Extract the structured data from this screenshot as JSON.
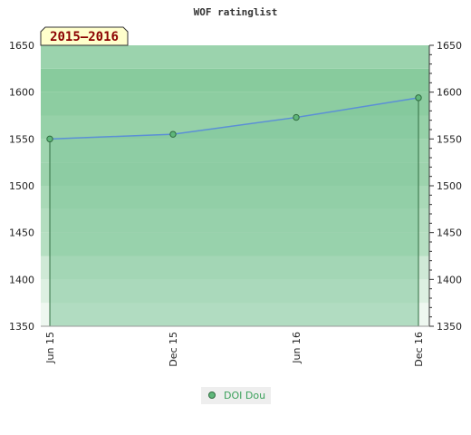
{
  "chart_data": {
    "type": "area",
    "title": "WOF ratinglist",
    "season_label": "2015–2016",
    "xlabel": "",
    "ylabel": "",
    "x_tick_labels": [
      "Jun 15",
      "Dec 15",
      "Jun 16",
      "Dec 16"
    ],
    "ylim": [
      1350,
      1650
    ],
    "y_ticks": [
      1350,
      1400,
      1450,
      1500,
      1550,
      1600,
      1650
    ],
    "series": [
      {
        "name": "DOI Dou",
        "x": [
          "Jun 15",
          "Dec 15",
          "Jun 16",
          "Dec 16"
        ],
        "values": [
          1550,
          1555,
          1573,
          1594
        ]
      }
    ],
    "legend_position": "bottom-center",
    "grid": false
  },
  "colors": {
    "line": "#5b8fd6",
    "marker_fill": "#5fb77a",
    "marker_stroke": "#2f6b3f",
    "area_fill": "#7fc79a",
    "legend_text": "#3aa05a",
    "legend_bg": "#eeeeee",
    "season_label_bg": "#ffffcc",
    "season_label_text": "#8b0000"
  }
}
